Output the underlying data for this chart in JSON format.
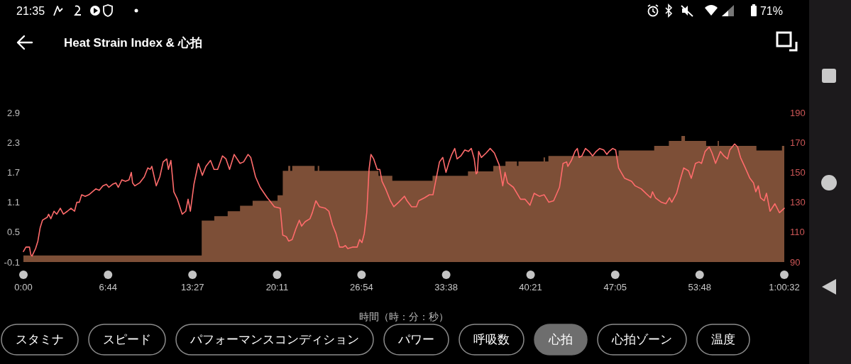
{
  "chart_data": {
    "type": "area",
    "title": "Heat Strain Index & 心拍",
    "xlabel": "時間（時：分：秒）",
    "xlim": [
      0,
      3632
    ],
    "xticks": [
      {
        "value": 0,
        "label": "0:00"
      },
      {
        "value": 404,
        "label": "6:44"
      },
      {
        "value": 807,
        "label": "13:27"
      },
      {
        "value": 1211,
        "label": "20:11"
      },
      {
        "value": 1614,
        "label": "26:54"
      },
      {
        "value": 2018,
        "label": "33:38"
      },
      {
        "value": 2421,
        "label": "40:21"
      },
      {
        "value": 2825,
        "label": "47:05"
      },
      {
        "value": 3228,
        "label": "53:48"
      },
      {
        "value": 3632,
        "label": "1:00:32"
      }
    ],
    "ylim": [
      -0.1,
      2.9
    ],
    "yticks": [
      -0.1,
      0.5,
      1.1,
      1.7,
      2.3,
      2.9
    ],
    "y2lim": [
      90,
      190
    ],
    "y2ticks": [
      90,
      110,
      130,
      150,
      170,
      190
    ],
    "series": [
      {
        "color": "#7d4f37",
        "x": [
          0,
          851,
          851,
          911,
          911,
          975,
          975,
          1034,
          1034,
          1094,
          1094,
          1213,
          1213,
          1238,
          1238,
          1264,
          1264,
          1274,
          1274,
          1283,
          1283,
          1390,
          1390,
          1405,
          1405,
          1412,
          1412,
          1695,
          1695,
          1761,
          1761,
          1953,
          1953,
          2122,
          2122,
          2243,
          2243,
          2301,
          2301,
          2356,
          2356,
          2363,
          2363,
          2483,
          2483,
          2490,
          2490,
          2506,
          2506,
          2841,
          2841,
          3011,
          3011,
          3081,
          3081,
          3141,
          3141,
          3158,
          3158,
          3259,
          3259,
          3314,
          3314,
          3320,
          3320,
          3499,
          3499,
          3621,
          3621,
          3632
        ],
        "values": [
          0.03,
          0.03,
          0.73,
          0.73,
          0.82,
          0.82,
          0.92,
          0.92,
          1.03,
          1.03,
          1.13,
          1.13,
          1.24,
          1.24,
          1.73,
          1.73,
          1.83,
          1.83,
          1.73,
          1.73,
          1.83,
          1.83,
          1.73,
          1.73,
          1.83,
          1.83,
          1.73,
          1.73,
          1.63,
          1.63,
          1.53,
          1.53,
          1.63,
          1.63,
          1.72,
          1.72,
          1.83,
          1.83,
          1.92,
          1.92,
          1.83,
          1.83,
          1.92,
          1.92,
          2.0,
          2.0,
          1.92,
          1.92,
          2.03,
          2.03,
          2.14,
          2.14,
          2.23,
          2.23,
          2.33,
          2.33,
          2.43,
          2.43,
          2.33,
          2.33,
          2.23,
          2.23,
          2.33,
          2.33,
          2.23,
          2.23,
          2.14,
          2.14,
          2.23,
          2.23
        ]
      },
      {
        "type": "line",
        "axis": "y2",
        "color": "#ff6b6b",
        "x": [
          0,
          12,
          29,
          35,
          41,
          58,
          69,
          80,
          91,
          114,
          120,
          131,
          146,
          159,
          176,
          191,
          210,
          227,
          244,
          255,
          267,
          278,
          295,
          312,
          329,
          346,
          362,
          379,
          396,
          408,
          425,
          441,
          453,
          470,
          487,
          504,
          515,
          521,
          532,
          555,
          577,
          594,
          605,
          613,
          634,
          651,
          667,
          684,
          692,
          704,
          718,
          735,
          758,
          775,
          786,
          797,
          814,
          835,
          854,
          871,
          893,
          910,
          927,
          950,
          967,
          984,
          1006,
          1034,
          1051,
          1072,
          1085,
          1108,
          1130,
          1164,
          1176,
          1198,
          1226,
          1238,
          1255,
          1266,
          1283,
          1300,
          1317,
          1328,
          1345,
          1368,
          1379,
          1396,
          1413,
          1441,
          1458,
          1475,
          1492,
          1509,
          1526,
          1537,
          1548,
          1571,
          1593,
          1605,
          1616,
          1627,
          1639,
          1650,
          1659,
          1672,
          1689,
          1701,
          1712,
          1729,
          1752,
          1768,
          1791,
          1819,
          1831,
          1853,
          1876,
          1887,
          1915,
          1938,
          1955,
          1972,
          1986,
          2002,
          2017,
          2032,
          2045,
          2059,
          2070,
          2088,
          2107,
          2124,
          2138,
          2152,
          2161,
          2167,
          2173,
          2186,
          2209,
          2228,
          2248,
          2271,
          2288,
          2299,
          2311,
          2339,
          2373,
          2395,
          2418,
          2438,
          2463,
          2486,
          2508,
          2531,
          2559,
          2576,
          2593,
          2599,
          2616,
          2633,
          2644,
          2653,
          2666,
          2683,
          2700,
          2717,
          2734,
          2751,
          2770,
          2785,
          2796,
          2813,
          2827,
          2841,
          2870,
          2903,
          2920,
          2949,
          2971,
          2994,
          3003,
          3017,
          3045,
          3067,
          3084,
          3095,
          3118,
          3135,
          3152,
          3175,
          3188,
          3208,
          3225,
          3237,
          3254,
          3274,
          3287,
          3304,
          3327,
          3344,
          3361,
          3372,
          3395,
          3409,
          3423,
          3446,
          3468,
          3485,
          3496,
          3508,
          3519,
          3536,
          3547,
          3564,
          3587,
          3609,
          3632
        ],
        "values": [
          97,
          100,
          100,
          95,
          94,
          99,
          104,
          113,
          118,
          120,
          122,
          119,
          124,
          122,
          126,
          122,
          124,
          126,
          124,
          130,
          130,
          135,
          134,
          135,
          137,
          139,
          138,
          141,
          142,
          140,
          142,
          143,
          140,
          145,
          144,
          145,
          150,
          143,
          141,
          143,
          147,
          153,
          152,
          154,
          141,
          147,
          157,
          159,
          152,
          158,
          137,
          132,
          122,
          124,
          132,
          124,
          142,
          156,
          148,
          154,
          158,
          152,
          152,
          161,
          159,
          152,
          162,
          156,
          157,
          162,
          160,
          147,
          140,
          133,
          131,
          127,
          126,
          108,
          107,
          104,
          105,
          112,
          118,
          114,
          117,
          119,
          123,
          131,
          127,
          126,
          124,
          115,
          109,
          100,
          100,
          101,
          99,
          100,
          100,
          105,
          103,
          109,
          123,
          152,
          162,
          159,
          152,
          152,
          144,
          139,
          131,
          127,
          130,
          134,
          131,
          127,
          127,
          131,
          133,
          135,
          135,
          147,
          157,
          160,
          150,
          157,
          162,
          166,
          159,
          161,
          165,
          164,
          166,
          159,
          149,
          150,
          164,
          160,
          163,
          166,
          163,
          155,
          141,
          150,
          143,
          140,
          132,
          132,
          128,
          136,
          134,
          135,
          130,
          131,
          140,
          156,
          157,
          154,
          158,
          164,
          166,
          160,
          161,
          166,
          164,
          161,
          164,
          166,
          165,
          162,
          164,
          166,
          165,
          153,
          146,
          144,
          141,
          139,
          136,
          133,
          137,
          133,
          130,
          129,
          133,
          130,
          136,
          145,
          153,
          151,
          146,
          156,
          157,
          156,
          164,
          167,
          163,
          156,
          164,
          161,
          159,
          165,
          169,
          167,
          160,
          153,
          146,
          143,
          137,
          141,
          133,
          131,
          136,
          124,
          129,
          123,
          126
        ]
      }
    ],
    "annotations": [
      "21:35",
      "71%",
      "スタミナ",
      "スピード",
      "パフォーマンスコンディション",
      "パワー",
      "呼吸数",
      "心拍",
      "心拍ゾーン",
      "温度"
    ]
  }
}
